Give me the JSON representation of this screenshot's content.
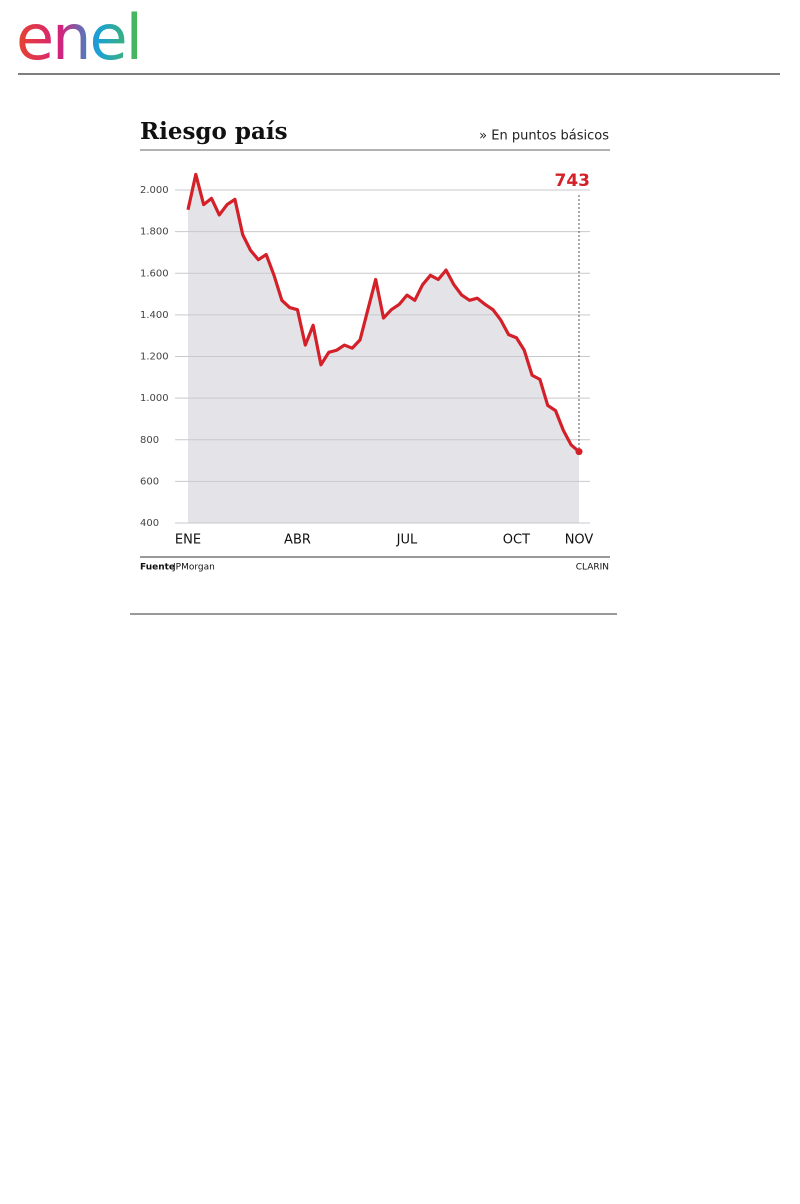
{
  "header": {
    "logo": "enel"
  },
  "chart_data": {
    "type": "line",
    "title": "Riesgo país",
    "subtitle": "» En puntos básicos",
    "source_label": "Fuente",
    "source": "JPMorgan",
    "credit": "CLARIN",
    "color": "#d42029",
    "area_color": "#e4e4e8",
    "grid": true,
    "categories": [
      "ENE",
      null,
      null,
      null,
      null,
      null,
      null,
      null,
      null,
      null,
      null,
      null,
      null,
      null,
      "ABR",
      null,
      null,
      null,
      null,
      null,
      null,
      null,
      null,
      null,
      null,
      null,
      null,
      null,
      "JUL",
      null,
      null,
      null,
      null,
      null,
      null,
      null,
      null,
      null,
      null,
      null,
      null,
      null,
      "OCT",
      null,
      null,
      null,
      null,
      null,
      null,
      null,
      "NOV"
    ],
    "values": [
      1905,
      2075,
      1930,
      1960,
      1880,
      1930,
      1955,
      1785,
      1710,
      1665,
      1690,
      1590,
      1470,
      1435,
      1425,
      1255,
      1350,
      1160,
      1220,
      1230,
      1255,
      1240,
      1280,
      1425,
      1570,
      1385,
      1425,
      1450,
      1495,
      1470,
      1545,
      1590,
      1570,
      1615,
      1545,
      1495,
      1470,
      1480,
      1450,
      1425,
      1375,
      1305,
      1290,
      1230,
      1110,
      1090,
      965,
      940,
      845,
      775,
      743
    ],
    "ylim": [
      400,
      2000
    ],
    "yticks": [
      400,
      600,
      800,
      {
        "value": 1000,
        "label": "1.000"
      },
      {
        "value": 1200,
        "label": "1.200"
      },
      {
        "value": 1400,
        "label": "1.400"
      },
      {
        "value": 1600,
        "label": "1.600"
      },
      {
        "value": 1800,
        "label": "1.800"
      },
      {
        "value": 2000,
        "label": "2.000"
      }
    ]
  }
}
